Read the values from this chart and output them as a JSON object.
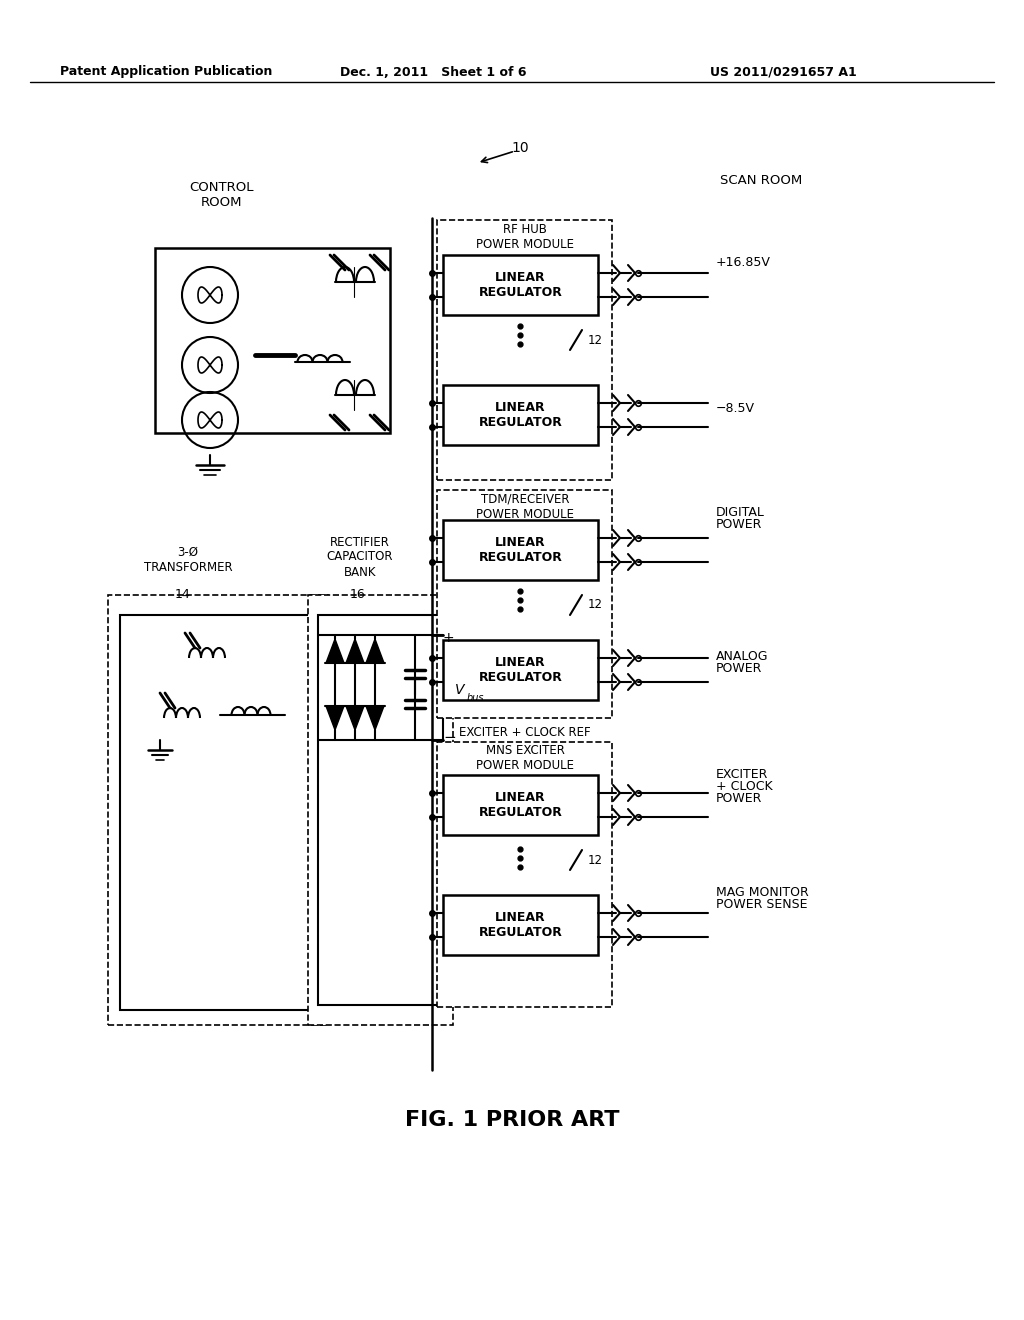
{
  "header_left": "Patent Application Publication",
  "header_mid": "Dec. 1, 2011   Sheet 1 of 6",
  "header_right": "US 2011/0291657 A1",
  "caption": "FIG. 1 PRIOR ART",
  "fig_number": "10",
  "bg_color": "#ffffff"
}
